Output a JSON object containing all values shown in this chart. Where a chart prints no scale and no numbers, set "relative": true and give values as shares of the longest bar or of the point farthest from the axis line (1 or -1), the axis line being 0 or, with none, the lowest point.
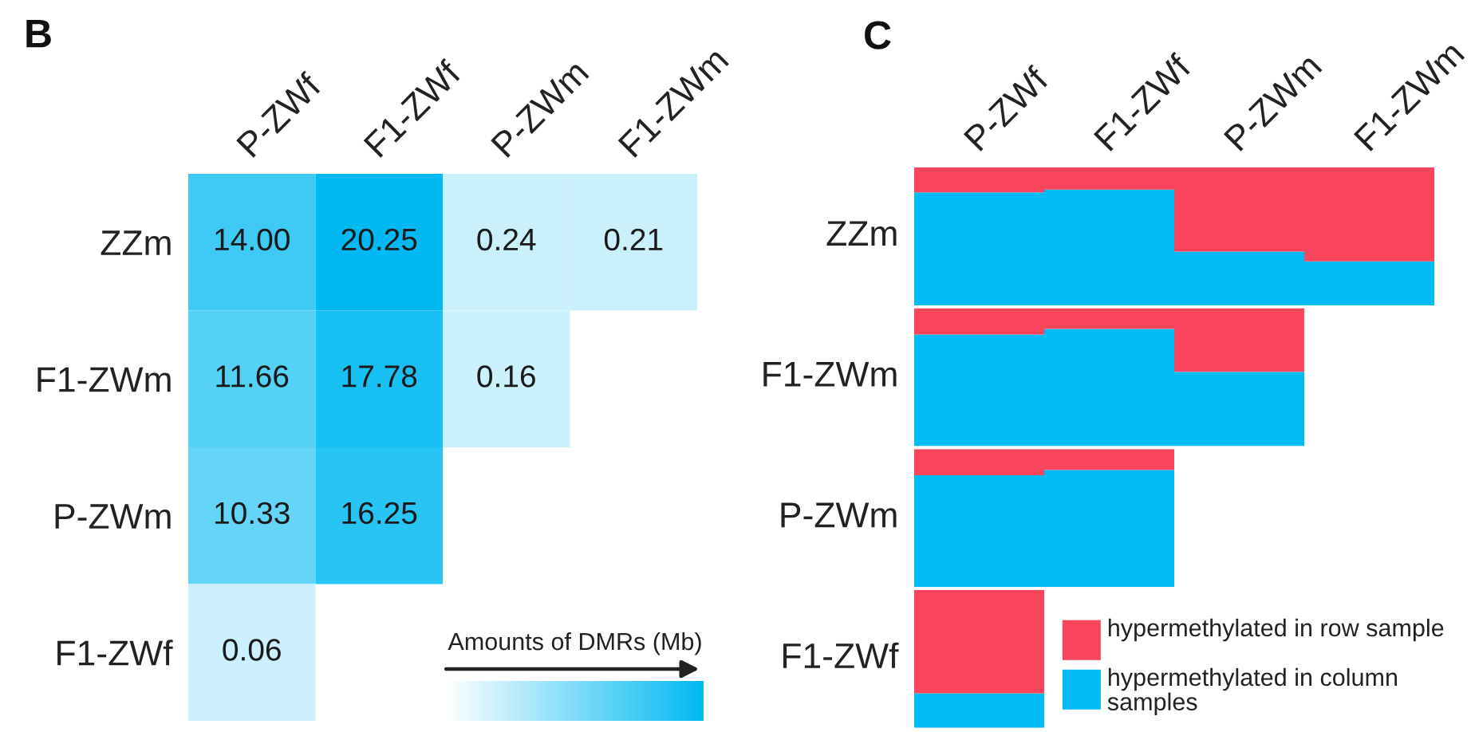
{
  "chart_data": [
    {
      "type": "heatmap",
      "title": "B",
      "categories": [
        "P-ZWf",
        "F1-ZWf",
        "P-ZWm",
        "F1-ZWm"
      ],
      "y_categories": [
        "ZZm",
        "F1-ZWm",
        "P-ZWm",
        "F1-ZWf"
      ],
      "cells": [
        [
          14.0,
          20.25,
          0.24,
          0.21
        ],
        [
          11.66,
          17.78,
          0.16,
          null
        ],
        [
          10.33,
          16.25,
          null,
          null
        ],
        [
          0.06,
          null,
          null,
          null
        ]
      ],
      "cell_labels": [
        [
          "14.00",
          "20.25",
          "0.24",
          "0.21"
        ],
        [
          "11.66",
          "17.78",
          "0.16",
          null
        ],
        [
          "10.33",
          "16.25",
          null,
          null
        ],
        [
          "0.06",
          null,
          null,
          null
        ]
      ],
      "clabel": "Amounts of DMRs (Mb)",
      "color": "#00b9f2"
    },
    {
      "type": "bar",
      "title": "C",
      "stacked": true,
      "relative": true,
      "ylabel": "ZZm",
      "categories": [
        "P-ZWf",
        "F1-ZWf",
        "P-ZWm",
        "F1-ZWm"
      ],
      "series": [
        {
          "color": "#00bbf4",
          "values": [
            0.82,
            0.84,
            0.39,
            0.32
          ]
        },
        {
          "color": "#f9455b",
          "values": [
            0.18,
            0.16,
            0.61,
            0.68
          ]
        }
      ]
    },
    {
      "type": "bar",
      "stacked": true,
      "relative": true,
      "ylabel": "F1-ZWm",
      "categories": [
        null,
        null,
        null,
        null
      ],
      "series": [
        {
          "color": "#00bbf4",
          "values": [
            0.81,
            0.85,
            0.54,
            null
          ]
        },
        {
          "color": "#f9455b",
          "values": [
            0.19,
            0.15,
            0.46,
            null
          ]
        }
      ]
    },
    {
      "type": "bar",
      "stacked": true,
      "relative": true,
      "ylabel": "P-ZWm",
      "categories": [
        null,
        null,
        null,
        null
      ],
      "series": [
        {
          "color": "#00bbf4",
          "values": [
            0.81,
            0.85,
            null,
            null
          ]
        },
        {
          "color": "#f9455b",
          "values": [
            0.19,
            0.15,
            null,
            null
          ]
        }
      ]
    },
    {
      "type": "bar",
      "stacked": true,
      "relative": true,
      "ylabel": "F1-ZWf",
      "legend": "bottom right",
      "categories": [
        null,
        null,
        null,
        null
      ],
      "series": [
        {
          "name": "hypermethylated in column samples",
          "color": "#00bbf4",
          "values": [
            0.25,
            null,
            null,
            null
          ]
        },
        {
          "name": "hypermethylated in row sample",
          "color": "#f9455b",
          "values": [
            0.75,
            null,
            null,
            null
          ]
        }
      ]
    }
  ]
}
